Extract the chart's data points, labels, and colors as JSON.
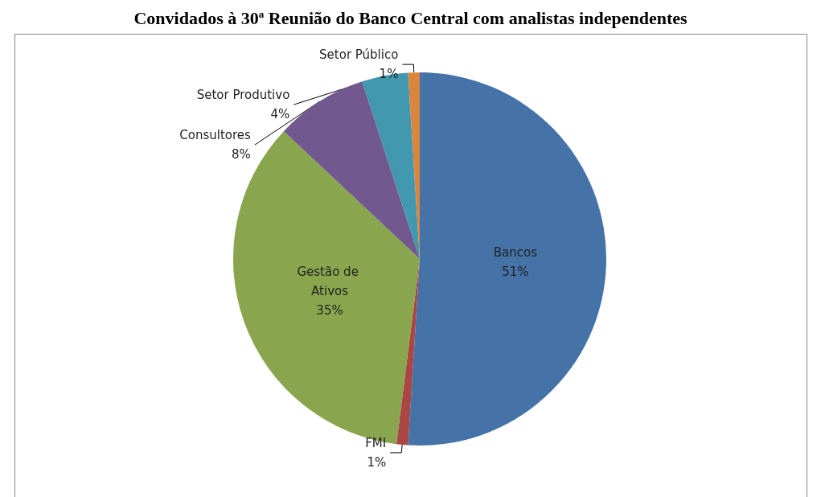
{
  "chart_data": {
    "type": "pie",
    "title": "Convidados à 30ª Reunião do Banco Central com analistas independentes",
    "categories": [
      "Bancos",
      "FMI",
      "Gestão de Ativos",
      "Consultores",
      "Setor Produtivo",
      "Setor Público"
    ],
    "values": [
      51,
      1,
      35,
      8,
      4,
      1
    ],
    "colors": [
      "#4572a7",
      "#aa4643",
      "#89a54e",
      "#71588f",
      "#4198af",
      "#db843d"
    ],
    "value_labels": [
      "51%",
      "1%",
      "35%",
      "8%",
      "4%",
      "1%"
    ],
    "legend": false
  }
}
